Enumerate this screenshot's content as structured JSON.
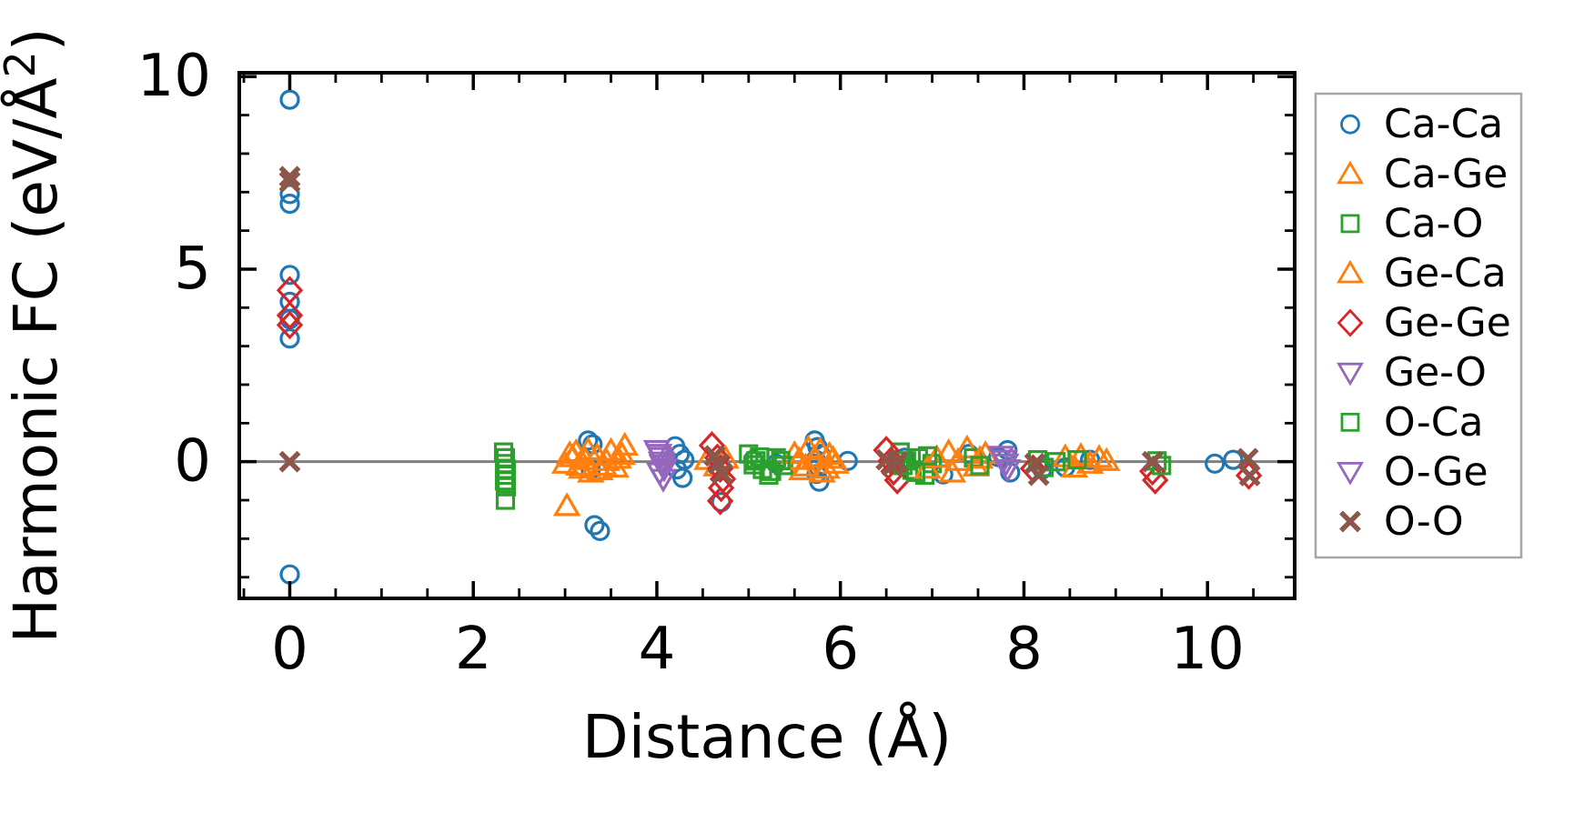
{
  "chart_data": {
    "type": "scatter",
    "title": "",
    "xlabel": "Distance (Å)",
    "ylabel": "Harmonic FC (eV/Å²)",
    "ylabel_parts": {
      "pre": "Harmonic FC (eV/Å",
      "sup": "2",
      "post": ")"
    },
    "x_axis": {
      "lim": [
        -0.55,
        10.95
      ],
      "major_ticks": [
        0,
        2,
        4,
        6,
        8,
        10
      ],
      "tick_labels": [
        "0",
        "2",
        "4",
        "6",
        "8",
        "10"
      ],
      "minor_step": 0.5
    },
    "y_axis": {
      "lim": [
        -3.55,
        10.1
      ],
      "major_ticks": [
        0,
        5,
        10
      ],
      "tick_labels": [
        "0",
        "5",
        "10"
      ],
      "minor_step": 1
    },
    "zero_line": {
      "y": 0,
      "color": "#808080"
    },
    "legend": {
      "position": "outside-right",
      "border_color": "#a6a6a6"
    },
    "grid": false,
    "series": [
      {
        "name": "Ca-Ca",
        "marker": "circle",
        "color": "#1f77b4",
        "points": [
          [
            0,
            9.4
          ],
          [
            0,
            6.95
          ],
          [
            0,
            6.7
          ],
          [
            0,
            4.85
          ],
          [
            0,
            4.15
          ],
          [
            0,
            3.7
          ],
          [
            0,
            3.2
          ],
          [
            0,
            -2.93
          ],
          [
            3.25,
            0.55
          ],
          [
            3.3,
            0.45
          ],
          [
            3.28,
            -0.2
          ],
          [
            3.32,
            -1.65
          ],
          [
            3.38,
            -1.8
          ],
          [
            4.2,
            0.4
          ],
          [
            4.25,
            0.2
          ],
          [
            4.3,
            0.05
          ],
          [
            4.22,
            -0.2
          ],
          [
            4.28,
            -0.42
          ],
          [
            4.7,
            -1.05
          ],
          [
            5.05,
            0.05
          ],
          [
            5.3,
            -0.05
          ],
          [
            5.72,
            0.55
          ],
          [
            5.75,
            0.38
          ],
          [
            5.78,
            0.2
          ],
          [
            5.73,
            0.05
          ],
          [
            5.76,
            -0.15
          ],
          [
            5.74,
            -0.32
          ],
          [
            5.77,
            -0.52
          ],
          [
            6.08,
            0.02
          ],
          [
            6.7,
            0.1
          ],
          [
            7.12,
            -0.33
          ],
          [
            7.4,
            0.2
          ],
          [
            7.72,
            0.12
          ],
          [
            7.82,
            0.3
          ],
          [
            7.85,
            -0.28
          ],
          [
            8.2,
            -0.2
          ],
          [
            8.45,
            -0.15
          ],
          [
            8.72,
            0.05
          ],
          [
            10.08,
            -0.05
          ],
          [
            10.28,
            0.05
          ]
        ]
      },
      {
        "name": "Ca-Ge",
        "marker": "triangle_up",
        "color": "#ff7f0e",
        "points": [
          [
            3.0,
            -0.05
          ],
          [
            3.08,
            0.12
          ],
          [
            3.12,
            0.25
          ],
          [
            3.18,
            -0.18
          ],
          [
            3.22,
            0.05
          ],
          [
            3.28,
            -0.28
          ],
          [
            3.35,
            0.15
          ],
          [
            3.42,
            -0.1
          ],
          [
            3.5,
            0.28
          ],
          [
            3.58,
            0.08
          ],
          [
            3.65,
            0.42
          ],
          [
            3.02,
            -1.15
          ],
          [
            5.5,
            0.2
          ],
          [
            5.58,
            -0.22
          ],
          [
            5.65,
            0.35
          ],
          [
            5.72,
            0.1
          ],
          [
            5.8,
            -0.28
          ],
          [
            5.88,
            0.18
          ],
          [
            5.95,
            -0.05
          ],
          [
            7.18,
            0.25
          ],
          [
            7.28,
            0.02
          ],
          [
            7.38,
            0.35
          ],
          [
            7.48,
            -0.12
          ],
          [
            7.58,
            0.2
          ]
        ]
      },
      {
        "name": "Ca-O",
        "marker": "square",
        "color": "#2ca02c",
        "points": [
          [
            2.33,
            0.25
          ],
          [
            2.35,
            0.1
          ],
          [
            2.34,
            -0.05
          ],
          [
            2.36,
            -0.2
          ],
          [
            2.35,
            -0.35
          ],
          [
            2.34,
            -0.5
          ],
          [
            2.36,
            -0.65
          ],
          [
            2.35,
            -1.0
          ],
          [
            5.0,
            0.2
          ],
          [
            5.08,
            0.02
          ],
          [
            5.15,
            -0.2
          ],
          [
            5.22,
            -0.35
          ],
          [
            5.3,
            0.1
          ],
          [
            5.38,
            -0.1
          ],
          [
            6.65,
            0.25
          ],
          [
            6.72,
            0.02
          ],
          [
            6.78,
            -0.22
          ],
          [
            6.85,
            0.1
          ],
          [
            6.92,
            -0.35
          ],
          [
            7.0,
            -0.05
          ],
          [
            7.45,
            0.1
          ],
          [
            8.15,
            0.05
          ],
          [
            9.45,
            0.02
          ]
        ]
      },
      {
        "name": "Ge-Ca",
        "marker": "triangle_up",
        "color": "#ff7f0e",
        "points": [
          [
            3.05,
            0.2
          ],
          [
            3.15,
            -0.1
          ],
          [
            3.25,
            0.3
          ],
          [
            3.38,
            -0.22
          ],
          [
            3.45,
            0.02
          ],
          [
            3.55,
            -0.15
          ],
          [
            3.62,
            0.18
          ],
          [
            4.55,
            0.05
          ],
          [
            4.65,
            -0.12
          ],
          [
            4.75,
            0.08
          ],
          [
            5.55,
            0.05
          ],
          [
            5.62,
            -0.12
          ],
          [
            5.78,
            0.3
          ],
          [
            5.85,
            -0.18
          ],
          [
            5.92,
            0.08
          ],
          [
            6.95,
            -0.18
          ],
          [
            7.05,
            0.1
          ],
          [
            7.22,
            -0.28
          ],
          [
            7.52,
            0.08
          ],
          [
            8.45,
            0.12
          ],
          [
            8.55,
            -0.15
          ],
          [
            8.62,
            0.15
          ],
          [
            8.72,
            -0.05
          ],
          [
            8.82,
            0.1
          ],
          [
            8.9,
            0.02
          ]
        ]
      },
      {
        "name": "Ge-Ge",
        "marker": "diamond",
        "color": "#d62728",
        "points": [
          [
            0,
            4.45
          ],
          [
            0,
            3.8
          ],
          [
            0,
            3.55
          ],
          [
            4.6,
            0.42
          ],
          [
            4.66,
            0.1
          ],
          [
            4.69,
            -0.18
          ],
          [
            4.72,
            -0.45
          ],
          [
            4.7,
            -0.68
          ],
          [
            4.69,
            -1.02
          ],
          [
            6.5,
            0.3
          ],
          [
            6.55,
            0.02
          ],
          [
            6.58,
            -0.25
          ],
          [
            6.62,
            -0.48
          ],
          [
            8.1,
            -0.18
          ],
          [
            9.4,
            -0.25
          ],
          [
            9.43,
            -0.48
          ],
          [
            10.45,
            -0.36
          ]
        ]
      },
      {
        "name": "Ge-O",
        "marker": "triangle_down",
        "color": "#9467bd",
        "points": [
          [
            4.0,
            0.3
          ],
          [
            4.04,
            0.12
          ],
          [
            4.06,
            -0.08
          ],
          [
            4.03,
            -0.28
          ],
          [
            4.07,
            -0.45
          ],
          [
            7.75,
            0.15
          ],
          [
            7.8,
            -0.05
          ]
        ]
      },
      {
        "name": "O-Ca",
        "marker": "square",
        "color": "#2ca02c",
        "points": [
          [
            5.05,
            -0.08
          ],
          [
            5.12,
            0.12
          ],
          [
            5.25,
            -0.25
          ],
          [
            5.35,
            0.03
          ],
          [
            6.68,
            -0.1
          ],
          [
            6.82,
            -0.28
          ],
          [
            6.95,
            0.15
          ],
          [
            7.52,
            -0.1
          ],
          [
            8.22,
            -0.15
          ],
          [
            8.35,
            0.0
          ],
          [
            8.58,
            0.05
          ],
          [
            9.5,
            -0.1
          ]
        ]
      },
      {
        "name": "O-Ge",
        "marker": "triangle_down",
        "color": "#9467bd",
        "points": [
          [
            4.02,
            0.2
          ],
          [
            4.05,
            0.0
          ],
          [
            4.08,
            -0.18
          ],
          [
            7.78,
            0.05
          ],
          [
            7.82,
            -0.2
          ]
        ]
      },
      {
        "name": "O-O",
        "marker": "x",
        "color": "#8c564b",
        "points": [
          [
            0,
            7.4
          ],
          [
            0,
            7.27
          ],
          [
            0,
            0
          ],
          [
            4.63,
            0.15
          ],
          [
            4.67,
            -0.05
          ],
          [
            4.71,
            -0.3
          ],
          [
            6.5,
            0.05
          ],
          [
            6.56,
            -0.1
          ],
          [
            6.62,
            0.0
          ],
          [
            8.12,
            -0.05
          ],
          [
            8.16,
            -0.35
          ],
          [
            9.4,
            0.0
          ],
          [
            10.44,
            0.08
          ],
          [
            10.46,
            -0.36
          ]
        ]
      }
    ]
  }
}
